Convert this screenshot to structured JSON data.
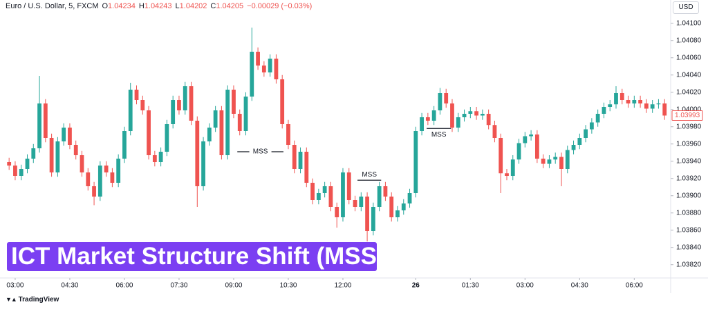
{
  "brand": "TradingView",
  "chart_data": {
    "type": "candlestick",
    "title": "ICT Market Structure Shift (MSS)",
    "currency": "USD",
    "header": {
      "symbol": "Euro / U.S. Dollar, 5, FXCM",
      "open_key": "O",
      "open": "1.04234",
      "high_key": "H",
      "high": "1.04243",
      "low_key": "L",
      "low": "1.04202",
      "close_key": "C",
      "close": "1.04205",
      "change": "−0.00029 (−0.03%)"
    },
    "up_color": "#26a69a",
    "down_color": "#ef5350",
    "grid": false,
    "ylim": [
      1.03807,
      1.04127
    ],
    "yticks": [
      {
        "value": 1.0382,
        "label": "1.03820"
      },
      {
        "value": 1.0384,
        "label": "1.03840"
      },
      {
        "value": 1.0386,
        "label": "1.03860"
      },
      {
        "value": 1.0388,
        "label": "1.03880"
      },
      {
        "value": 1.039,
        "label": "1.03900"
      },
      {
        "value": 1.0392,
        "label": "1.03920"
      },
      {
        "value": 1.0394,
        "label": "1.03940"
      },
      {
        "value": 1.0396,
        "label": "1.03960"
      },
      {
        "value": 1.0398,
        "label": "1.03980"
      },
      {
        "value": 1.04,
        "label": "1.04000"
      },
      {
        "value": 1.0402,
        "label": "1.04020"
      },
      {
        "value": 1.0404,
        "label": "1.04040"
      },
      {
        "value": 1.0406,
        "label": "1.04060"
      },
      {
        "value": 1.0408,
        "label": "1.04080"
      },
      {
        "value": 1.041,
        "label": "1.04100"
      }
    ],
    "xlim": [
      -1.5,
      109
    ],
    "xticks": [
      {
        "value": 1,
        "label": "03:00"
      },
      {
        "value": 10,
        "label": "04:30"
      },
      {
        "value": 19,
        "label": "06:00"
      },
      {
        "value": 28,
        "label": "07:30"
      },
      {
        "value": 37,
        "label": "09:00"
      },
      {
        "value": 46,
        "label": "10:30"
      },
      {
        "value": 55,
        "label": "12:00"
      },
      {
        "value": 67,
        "label": "26"
      },
      {
        "value": 76,
        "label": "01:30"
      },
      {
        "value": 85,
        "label": "03:00"
      },
      {
        "value": 94,
        "label": "04:30"
      },
      {
        "value": 103,
        "label": "06:00"
      }
    ],
    "last_price": {
      "value": 1.03993,
      "label": "1.03993",
      "color": "#ef5350"
    },
    "annotations": [
      {
        "label": "MSS",
        "price": 1.03951,
        "from": 37.6,
        "to": 45.2,
        "label_position": "inline"
      },
      {
        "label": "MSS",
        "price": 1.03918,
        "from": 57.4,
        "to": 61.3,
        "label_position": "above"
      },
      {
        "label": "MSS",
        "price": 1.03978,
        "from": 68.8,
        "to": 72.8,
        "label_position": "below"
      }
    ],
    "open": [
      1.03939,
      1.03935,
      1.03923,
      1.03931,
      1.03943,
      1.03955,
      1.04007,
      1.03967,
      1.03927,
      1.03963,
      1.03979,
      1.03959,
      1.03947,
      1.03927,
      1.03911,
      1.03899,
      1.03935,
      1.03927,
      1.03915,
      1.03943,
      1.03975,
      1.04023,
      1.04011,
      1.03999,
      1.03947,
      1.03939,
      1.03951,
      1.03983,
      1.04011,
      1.03999,
      1.04027,
      1.03987,
      1.03911,
      1.03963,
      1.03979,
      1.03999,
      1.03947,
      1.04023,
      1.03995,
      1.03975,
      1.04015,
      1.04067,
      1.04051,
      1.04043,
      1.04059,
      1.04035,
      1.03983,
      1.03959,
      1.03931,
      1.03951,
      1.03915,
      1.03895,
      1.03903,
      1.03911,
      1.03887,
      1.03875,
      1.03927,
      1.03895,
      1.03887,
      1.03899,
      1.03859,
      1.03887,
      1.03911,
      1.03899,
      1.03875,
      1.03883,
      1.03891,
      1.03903,
      1.03975,
      1.03991,
      1.03987,
      1.03999,
      1.04019,
      1.04007,
      1.03979,
      1.03991,
      1.03995,
      1.03998,
      1.03993,
      1.03995,
      1.03982,
      1.03967,
      1.03926,
      1.03923,
      1.03942,
      1.03961,
      1.03969,
      1.03971,
      1.03943,
      1.03937,
      1.03942,
      1.03945,
      1.03931,
      1.03953,
      1.03959,
      1.03967,
      1.03977,
      1.03985,
      1.03995,
      1.04003,
      1.04006,
      1.04019,
      1.04011,
      1.04007,
      1.04011,
      1.04007,
      1.04001,
      1.04006,
      1.04007
    ],
    "high": [
      1.03944,
      1.0394,
      1.03936,
      1.03948,
      1.0396,
      1.04039,
      1.04012,
      1.03972,
      1.03968,
      1.03984,
      1.03984,
      1.03964,
      1.03952,
      1.03932,
      1.03916,
      1.0394,
      1.0394,
      1.03932,
      1.03948,
      1.0398,
      1.04031,
      1.04028,
      1.04016,
      1.04004,
      1.03952,
      1.03956,
      1.03988,
      1.04016,
      1.04016,
      1.04032,
      1.04032,
      1.03992,
      1.03968,
      1.03984,
      1.04004,
      1.04004,
      1.04028,
      1.04028,
      1.04,
      1.0402,
      1.04095,
      1.04072,
      1.04056,
      1.04064,
      1.04064,
      1.0404,
      1.03988,
      1.03964,
      1.03956,
      1.03956,
      1.0392,
      1.03908,
      1.03916,
      1.03916,
      1.03892,
      1.03932,
      1.03932,
      1.039,
      1.03904,
      1.03904,
      1.03892,
      1.03916,
      1.03916,
      1.03904,
      1.03888,
      1.03896,
      1.03908,
      1.0398,
      1.03996,
      1.03996,
      1.04004,
      1.04025,
      1.04024,
      1.04012,
      1.03996,
      1.04,
      1.04003,
      1.04003,
      1.04,
      1.04,
      1.03987,
      1.03972,
      1.03931,
      1.03947,
      1.03966,
      1.03974,
      1.03976,
      1.03976,
      1.03948,
      1.03947,
      1.0395,
      1.0395,
      1.03958,
      1.03964,
      1.03972,
      1.03982,
      1.0399,
      1.04,
      1.04008,
      1.04011,
      1.04027,
      1.04024,
      1.04016,
      1.04016,
      1.04016,
      1.04012,
      1.04011,
      1.04012,
      1.04012
    ],
    "low": [
      1.0393,
      1.03918,
      1.03918,
      1.03926,
      1.03938,
      1.0395,
      1.03962,
      1.03922,
      1.03922,
      1.03958,
      1.03954,
      1.03942,
      1.03922,
      1.03906,
      1.03889,
      1.03894,
      1.03922,
      1.0391,
      1.0391,
      1.03938,
      1.0397,
      1.04006,
      1.03994,
      1.03942,
      1.03934,
      1.03934,
      1.03946,
      1.03978,
      1.03994,
      1.03994,
      1.03982,
      1.03887,
      1.03906,
      1.03958,
      1.03974,
      1.03942,
      1.03942,
      1.0399,
      1.0397,
      1.0397,
      1.0401,
      1.04046,
      1.04038,
      1.04038,
      1.0403,
      1.03978,
      1.03954,
      1.03926,
      1.03926,
      1.0391,
      1.0389,
      1.0389,
      1.03898,
      1.03882,
      1.03863,
      1.0387,
      1.0389,
      1.03882,
      1.03882,
      1.03847,
      1.03854,
      1.03882,
      1.03894,
      1.0387,
      1.0387,
      1.03878,
      1.03886,
      1.03898,
      1.0397,
      1.03982,
      1.03982,
      1.03994,
      1.04002,
      1.03974,
      1.03974,
      1.03986,
      1.0399,
      1.03988,
      1.03988,
      1.03977,
      1.03962,
      1.03903,
      1.03918,
      1.03918,
      1.03937,
      1.03956,
      1.03964,
      1.03938,
      1.03932,
      1.03932,
      1.03937,
      1.03911,
      1.03926,
      1.03948,
      1.03954,
      1.03962,
      1.03972,
      1.0398,
      1.0399,
      1.03998,
      1.04001,
      1.04006,
      1.04002,
      1.04002,
      1.04002,
      1.03996,
      1.03996,
      1.04001,
      1.03988
    ],
    "close": [
      1.03935,
      1.03923,
      1.03931,
      1.03943,
      1.03955,
      1.04007,
      1.03967,
      1.03927,
      1.03963,
      1.03979,
      1.03959,
      1.03947,
      1.03927,
      1.03911,
      1.03899,
      1.03935,
      1.03927,
      1.03915,
      1.03943,
      1.03975,
      1.04023,
      1.04011,
      1.03999,
      1.03947,
      1.03939,
      1.03951,
      1.03983,
      1.04011,
      1.03999,
      1.04027,
      1.03987,
      1.03911,
      1.03963,
      1.03979,
      1.03999,
      1.03947,
      1.04023,
      1.03995,
      1.03975,
      1.04015,
      1.04067,
      1.04051,
      1.04043,
      1.04059,
      1.04035,
      1.03983,
      1.03959,
      1.03931,
      1.03951,
      1.03915,
      1.03895,
      1.03903,
      1.03911,
      1.03887,
      1.03875,
      1.03927,
      1.03895,
      1.03887,
      1.03899,
      1.03859,
      1.03887,
      1.03911,
      1.03899,
      1.03875,
      1.03883,
      1.03891,
      1.03903,
      1.03975,
      1.03991,
      1.03987,
      1.03999,
      1.04019,
      1.04007,
      1.03979,
      1.03991,
      1.03995,
      1.03998,
      1.03993,
      1.03995,
      1.03982,
      1.03967,
      1.03926,
      1.03923,
      1.03942,
      1.03961,
      1.03969,
      1.03971,
      1.03943,
      1.03937,
      1.03942,
      1.03945,
      1.03931,
      1.03953,
      1.03959,
      1.03967,
      1.03977,
      1.03985,
      1.03995,
      1.04003,
      1.04006,
      1.04019,
      1.04011,
      1.04007,
      1.04011,
      1.04007,
      1.04001,
      1.04006,
      1.04007,
      1.03993
    ]
  }
}
